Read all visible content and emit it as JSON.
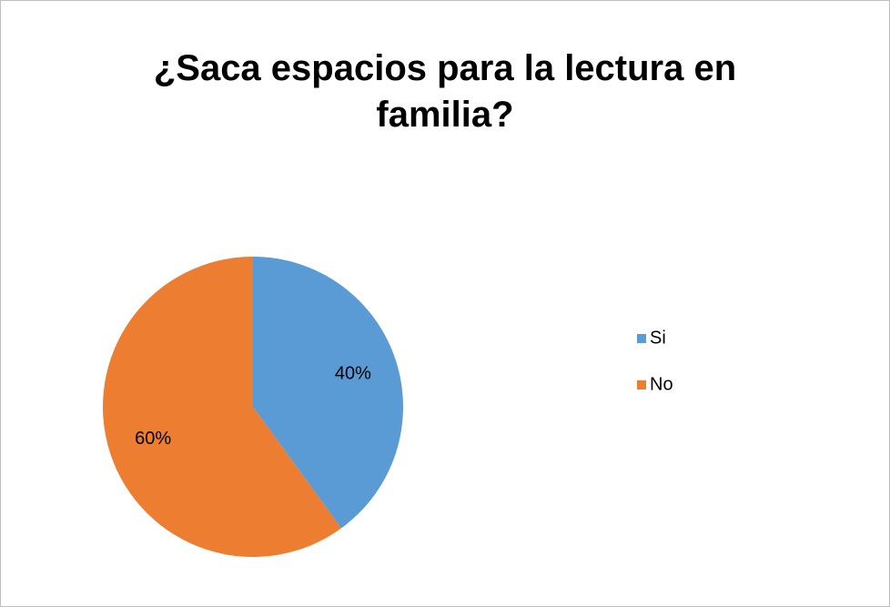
{
  "chart_data": {
    "type": "pie",
    "title": "¿Saca espacios para la lectura en familia?",
    "categories": [
      "Si",
      "No"
    ],
    "values": [
      40,
      60
    ],
    "value_labels": [
      "40%",
      "60%"
    ],
    "colors": [
      "#5b9bd5",
      "#ed7d31"
    ],
    "legend": "right"
  }
}
